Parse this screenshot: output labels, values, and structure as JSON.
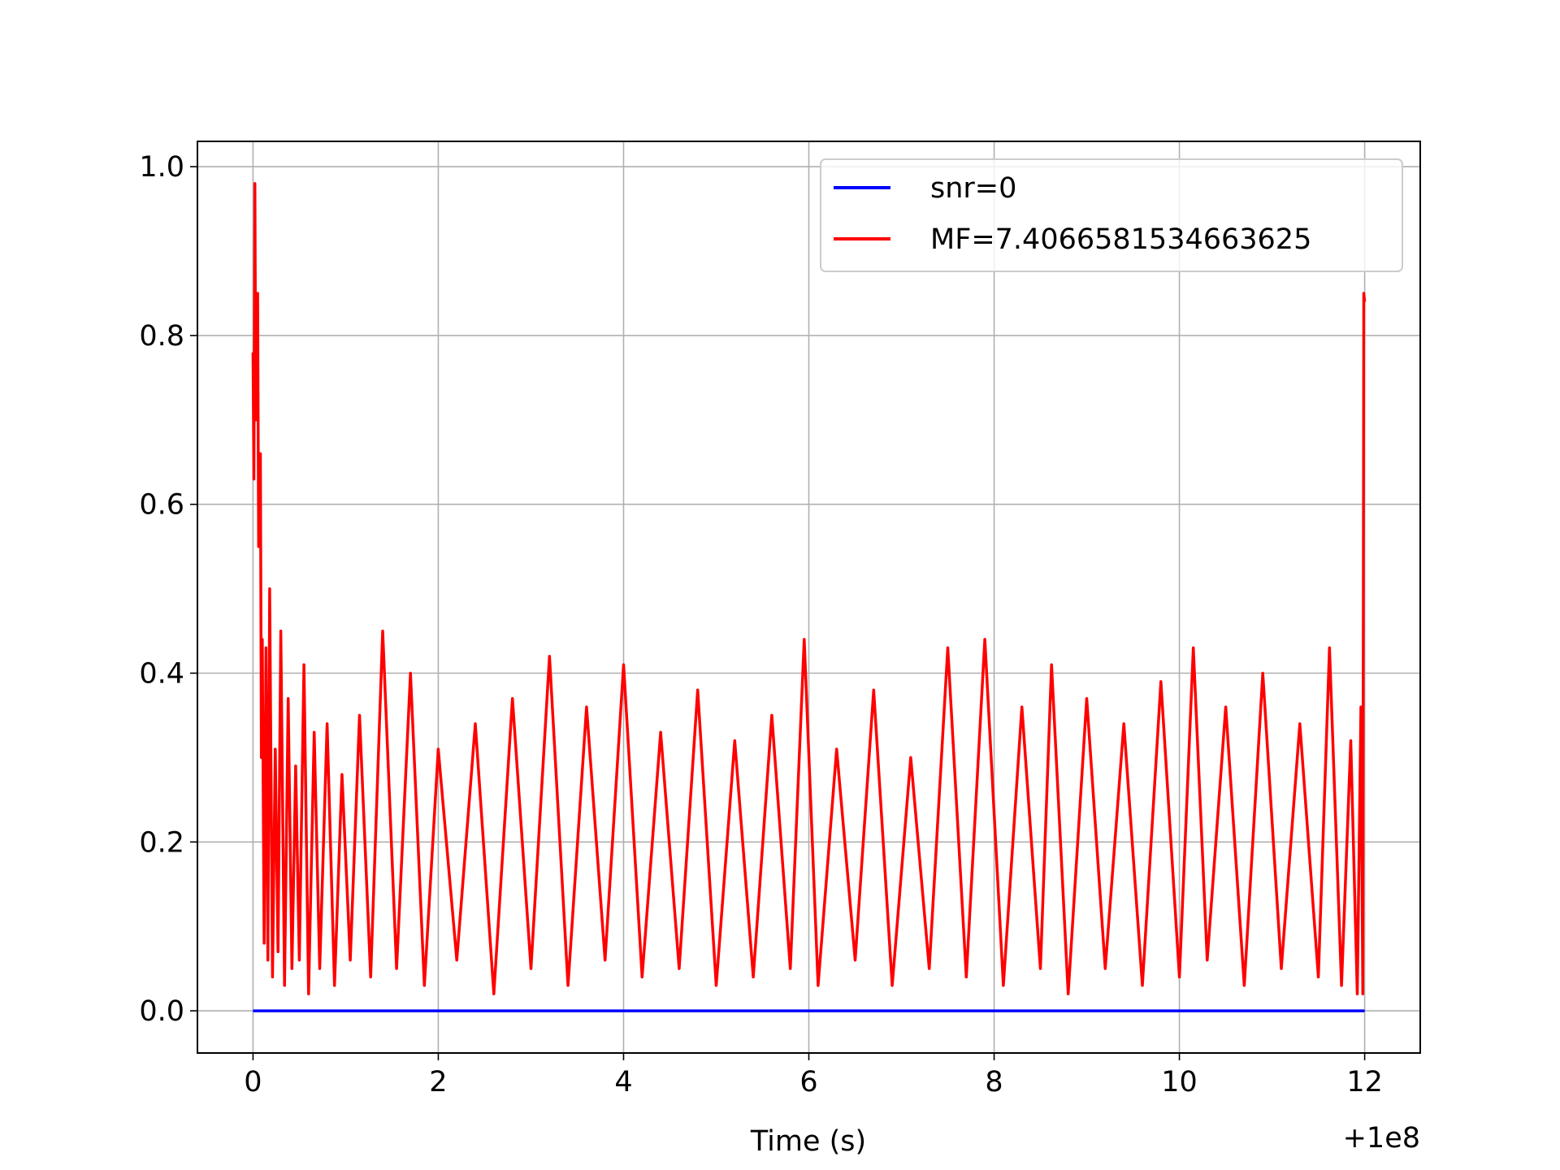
{
  "chart_data": {
    "type": "line",
    "title": "",
    "xlabel": "Time (s)",
    "ylabel": "",
    "x_offset_label": "+1e8",
    "xlim": [
      -0.6,
      12.6
    ],
    "ylim": [
      -0.05,
      1.03
    ],
    "xticks": [
      0,
      2,
      4,
      6,
      8,
      10,
      12
    ],
    "xtick_labels": [
      "0",
      "2",
      "4",
      "6",
      "8",
      "10",
      "12"
    ],
    "yticks": [
      0.0,
      0.2,
      0.4,
      0.6,
      0.8,
      1.0
    ],
    "ytick_labels": [
      "0.0",
      "0.2",
      "0.4",
      "0.6",
      "0.8",
      "1.0"
    ],
    "grid": true,
    "legend_position": "upper right",
    "series": [
      {
        "name": "snr=0",
        "color": "#0000ff",
        "x": [
          0,
          12
        ],
        "y": [
          0.0,
          0.0
        ]
      },
      {
        "name": "MF=7.4066581534663625",
        "color": "#ff0000",
        "x": [
          0.0,
          0.01,
          0.02,
          0.03,
          0.05,
          0.06,
          0.08,
          0.09,
          0.1,
          0.12,
          0.14,
          0.16,
          0.18,
          0.21,
          0.24,
          0.27,
          0.3,
          0.34,
          0.38,
          0.42,
          0.46,
          0.5,
          0.55,
          0.6,
          0.66,
          0.72,
          0.8,
          0.88,
          0.96,
          1.05,
          1.15,
          1.27,
          1.4,
          1.55,
          1.7,
          1.85,
          2.0,
          2.2,
          2.4,
          2.6,
          2.8,
          3.0,
          3.2,
          3.4,
          3.6,
          3.8,
          4.0,
          4.2,
          4.4,
          4.6,
          4.8,
          5.0,
          5.2,
          5.4,
          5.6,
          5.8,
          5.95,
          6.1,
          6.3,
          6.5,
          6.7,
          6.9,
          7.1,
          7.3,
          7.5,
          7.7,
          7.9,
          8.1,
          8.3,
          8.5,
          8.62,
          8.8,
          9.0,
          9.2,
          9.4,
          9.6,
          9.8,
          10.0,
          10.15,
          10.3,
          10.5,
          10.7,
          10.9,
          11.1,
          11.3,
          11.5,
          11.62,
          11.75,
          11.85,
          11.92,
          11.96,
          11.98,
          11.99,
          12.0
        ],
        "y": [
          0.78,
          0.63,
          0.98,
          0.7,
          0.85,
          0.55,
          0.66,
          0.3,
          0.44,
          0.08,
          0.43,
          0.06,
          0.5,
          0.04,
          0.31,
          0.07,
          0.45,
          0.03,
          0.37,
          0.05,
          0.29,
          0.06,
          0.41,
          0.02,
          0.33,
          0.05,
          0.34,
          0.03,
          0.28,
          0.06,
          0.35,
          0.04,
          0.45,
          0.05,
          0.4,
          0.03,
          0.31,
          0.06,
          0.34,
          0.02,
          0.37,
          0.05,
          0.42,
          0.03,
          0.36,
          0.06,
          0.41,
          0.04,
          0.33,
          0.05,
          0.38,
          0.03,
          0.32,
          0.04,
          0.35,
          0.05,
          0.44,
          0.03,
          0.31,
          0.06,
          0.38,
          0.03,
          0.3,
          0.05,
          0.43,
          0.04,
          0.44,
          0.03,
          0.36,
          0.05,
          0.41,
          0.02,
          0.37,
          0.05,
          0.34,
          0.03,
          0.39,
          0.04,
          0.43,
          0.06,
          0.36,
          0.03,
          0.4,
          0.05,
          0.34,
          0.04,
          0.43,
          0.03,
          0.32,
          0.02,
          0.36,
          0.02,
          0.85,
          0.84
        ]
      }
    ]
  }
}
